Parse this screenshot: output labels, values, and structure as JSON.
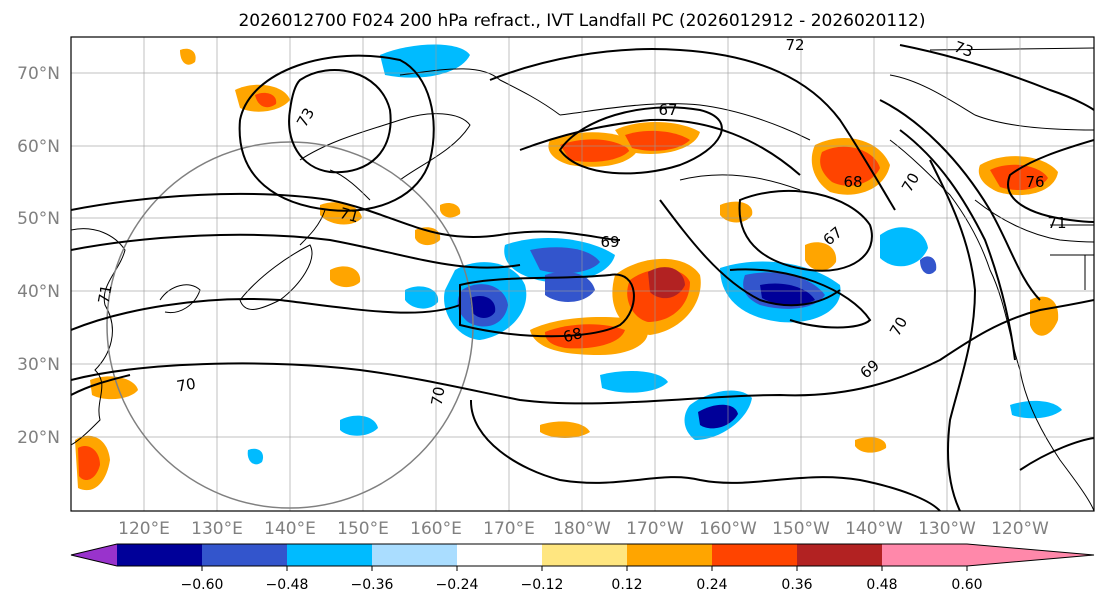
{
  "title": "2026012700 F024 200 hPa refract., IVT Landfall PC (2026012912 - 2026020112)",
  "map": {
    "lat_labels": [
      "70°N",
      "60°N",
      "50°N",
      "40°N",
      "30°N",
      "20°N"
    ],
    "lon_labels": [
      "120°E",
      "130°E",
      "140°E",
      "150°E",
      "160°E",
      "170°E",
      "180°W",
      "170°W",
      "160°W",
      "150°W",
      "140°W",
      "130°W",
      "120°W"
    ],
    "contour_labels": [
      "72",
      "73",
      "67",
      "73",
      "71",
      "69",
      "68",
      "76",
      "67",
      "71",
      "68",
      "70",
      "70",
      "70",
      "69",
      "70",
      "71"
    ]
  },
  "colorbar": {
    "ticks": [
      "−0.60",
      "−0.48",
      "−0.36",
      "−0.24",
      "−0.12",
      "0.12",
      "0.24",
      "0.36",
      "0.48",
      "0.60"
    ],
    "colors": [
      "#9933cc",
      "#000099",
      "#3355cc",
      "#00bbff",
      "#aaddff",
      "#ffffff",
      "#ffe680",
      "#ffa500",
      "#ff4400",
      "#b22222",
      "#ff88aa"
    ]
  }
}
